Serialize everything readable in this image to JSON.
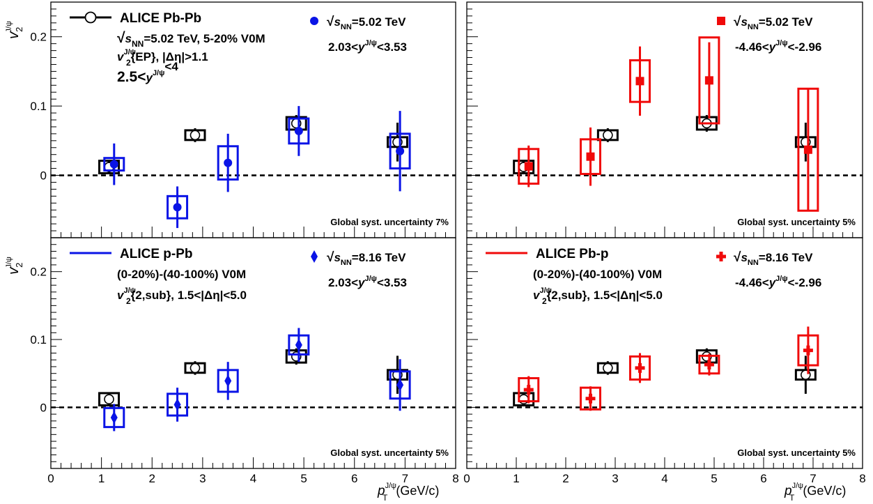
{
  "chart_data": [
    {
      "type": "scatter",
      "panel": "top-left",
      "xlim": [
        0,
        8
      ],
      "ylim": [
        -0.09,
        0.25
      ],
      "ylabel_main": "v",
      "ylabel_sub": "2",
      "ylabel_sup": "J/ψ",
      "legend": {
        "title": "ALICE Pb-Pb",
        "lines": [
          {
            "pre": "√",
            "var": "s",
            "sub": "NN",
            "post": "=5.02 TeV, 5-20% V0M"
          },
          {
            "pre": "",
            "var": "v",
            "sub": "2",
            "sup": "J/ψ",
            "post": "{EP}, |Δη|>1.1"
          },
          {
            "pre": "2.5<",
            "var": "y",
            "sub": "",
            "sup": "J/ψ",
            "post": "<4"
          }
        ]
      },
      "label": {
        "energy_pre": "√",
        "energy_var": "s",
        "energy_sub": "NN",
        "energy_post": "=5.02 TeV",
        "rap_pre": "2.03<",
        "rap_var": "y",
        "rap_sup": "J/ψ",
        "rap_post": "<3.53"
      },
      "note": "Global syst. uncertainty 7%",
      "series": [
        {
          "name": "ALICE Pb-Pb",
          "marker": "open-circle",
          "color": "#000000",
          "x": [
            1.15,
            2.85,
            4.85,
            6.85
          ],
          "y": [
            0.012,
            0.058,
            0.075,
            0.048
          ],
          "stat": [
            0.01,
            0.01,
            0.012,
            0.028
          ],
          "sys": [
            0.009,
            0.007,
            0.009,
            0.007
          ]
        },
        {
          "name": "",
          "marker": "filled-circle",
          "color": "#0a14e6",
          "x": [
            1.25,
            2.5,
            3.5,
            4.9,
            6.9
          ],
          "y": [
            0.016,
            -0.046,
            0.018,
            0.064,
            0.035
          ],
          "stat": [
            0.03,
            0.03,
            0.042,
            0.036,
            0.058
          ],
          "sys": [
            0.009,
            0.016,
            0.024,
            0.018,
            0.025
          ]
        }
      ]
    },
    {
      "type": "scatter",
      "panel": "top-right",
      "xlim": [
        0,
        8
      ],
      "ylim": [
        -0.09,
        0.25
      ],
      "label": {
        "energy_pre": "√",
        "energy_var": "s",
        "energy_sub": "NN",
        "energy_post": "=5.02 TeV",
        "rap_pre": "-4.46<",
        "rap_var": "y",
        "rap_sup": "J/ψ",
        "rap_post": "<-2.96"
      },
      "note": "Global syst. uncertainty 5%",
      "series": [
        {
          "name": "ALICE Pb-Pb",
          "marker": "open-circle",
          "color": "#000000",
          "x": [
            1.15,
            2.85,
            4.85,
            6.85
          ],
          "y": [
            0.012,
            0.058,
            0.075,
            0.048
          ],
          "stat": [
            0.01,
            0.01,
            0.012,
            0.028
          ],
          "sys": [
            0.009,
            0.007,
            0.009,
            0.007
          ]
        },
        {
          "name": "",
          "marker": "filled-square",
          "color": "#f00a0a",
          "x": [
            1.25,
            2.5,
            3.5,
            4.9,
            6.9
          ],
          "y": [
            0.013,
            0.027,
            0.136,
            0.137,
            0.037
          ],
          "stat": [
            0.03,
            0.042,
            0.05,
            0.055,
            0.088
          ],
          "sys": [
            0.025,
            0.025,
            0.03,
            0.062,
            0.088
          ]
        }
      ]
    },
    {
      "type": "scatter",
      "panel": "bottom-left",
      "xlim": [
        0,
        8
      ],
      "ylim": [
        -0.09,
        0.25
      ],
      "xlabel_var": "p",
      "xlabel_sub": "T",
      "xlabel_sup": "J/ψ",
      "xlabel_post": "(GeV/c)",
      "xticks": [
        "0",
        "1",
        "2",
        "3",
        "4",
        "5",
        "6",
        "7",
        "8"
      ],
      "ylabel_main": "v",
      "ylabel_sub": "2",
      "ylabel_sup": "J/ψ",
      "legend": {
        "title": "ALICE p-Pb",
        "lines": [
          {
            "pre": "",
            "var": "",
            "sub": "",
            "post": "(0-20%)-(40-100%) V0M"
          },
          {
            "pre": "",
            "var": "v",
            "sub": "2",
            "sup": "J/ψ",
            "post": "{2,sub}, 1.5<|Δη|<5.0"
          }
        ]
      },
      "label": {
        "energy_pre": "√",
        "energy_var": "s",
        "energy_sub": "NN",
        "energy_post": "=8.16 TeV",
        "rap_pre": "2.03<",
        "rap_var": "y",
        "rap_sup": "J/ψ",
        "rap_post": "<3.53"
      },
      "note": "Global syst. uncertainty 5%",
      "series": [
        {
          "name": "ALICE Pb-Pb",
          "marker": "open-circle",
          "color": "#000000",
          "x": [
            1.15,
            2.85,
            4.85,
            6.85
          ],
          "y": [
            0.012,
            0.058,
            0.075,
            0.048
          ],
          "stat": [
            0.01,
            0.01,
            0.012,
            0.028
          ],
          "sys": [
            0.009,
            0.007,
            0.009,
            0.007
          ]
        },
        {
          "name": "ALICE p-Pb",
          "marker": "filled-diamond",
          "color": "#0a14e6",
          "x": [
            1.25,
            2.5,
            3.5,
            4.9,
            6.9
          ],
          "y": [
            -0.015,
            0.004,
            0.039,
            0.092,
            0.033
          ],
          "stat": [
            0.02,
            0.025,
            0.028,
            0.025,
            0.038
          ],
          "sys": [
            0.014,
            0.016,
            0.016,
            0.014,
            0.02
          ]
        }
      ]
    },
    {
      "type": "scatter",
      "panel": "bottom-right",
      "xlim": [
        0,
        8
      ],
      "ylim": [
        -0.09,
        0.25
      ],
      "xlabel_var": "p",
      "xlabel_sub": "T",
      "xlabel_sup": "J/ψ",
      "xlabel_post": "(GeV/c)",
      "xticks": [
        "0",
        "1",
        "2",
        "3",
        "4",
        "5",
        "6",
        "7",
        "8"
      ],
      "legend": {
        "title": "ALICE Pb-p",
        "lines": [
          {
            "pre": "",
            "var": "",
            "sub": "",
            "post": "(0-20%)-(40-100%) V0M"
          },
          {
            "pre": "",
            "var": "v",
            "sub": "2",
            "sup": "J/ψ",
            "post": "{2,sub}, 1.5<|Δη|<5.0"
          }
        ]
      },
      "label": {
        "energy_pre": "√",
        "energy_var": "s",
        "energy_sub": "NN",
        "energy_post": "=8.16 TeV",
        "rap_pre": "-4.46<",
        "rap_var": "y",
        "rap_sup": "J/ψ",
        "rap_post": "<-2.96"
      },
      "note": "Global syst. uncertainty 5%",
      "series": [
        {
          "name": "ALICE Pb-Pb",
          "marker": "open-circle",
          "color": "#000000",
          "x": [
            1.15,
            2.85,
            4.85,
            6.85
          ],
          "y": [
            0.012,
            0.058,
            0.075,
            0.048
          ],
          "stat": [
            0.01,
            0.01,
            0.012,
            0.028
          ],
          "sys": [
            0.009,
            0.007,
            0.009,
            0.007
          ]
        },
        {
          "name": "ALICE Pb-p",
          "marker": "filled-cross",
          "color": "#f00a0a",
          "x": [
            1.25,
            2.5,
            3.5,
            4.9,
            6.9
          ],
          "y": [
            0.026,
            0.013,
            0.058,
            0.063,
            0.084
          ],
          "stat": [
            0.02,
            0.018,
            0.022,
            0.016,
            0.035
          ],
          "sys": [
            0.017,
            0.016,
            0.017,
            0.013,
            0.022
          ]
        }
      ]
    }
  ],
  "y_tick_labels": [
    "0",
    "0.1",
    "0.2"
  ],
  "y_tick_values": [
    0,
    0.1,
    0.2
  ],
  "colors": {
    "blue": "#0a14e6",
    "red": "#f00a0a",
    "black": "#000000"
  }
}
